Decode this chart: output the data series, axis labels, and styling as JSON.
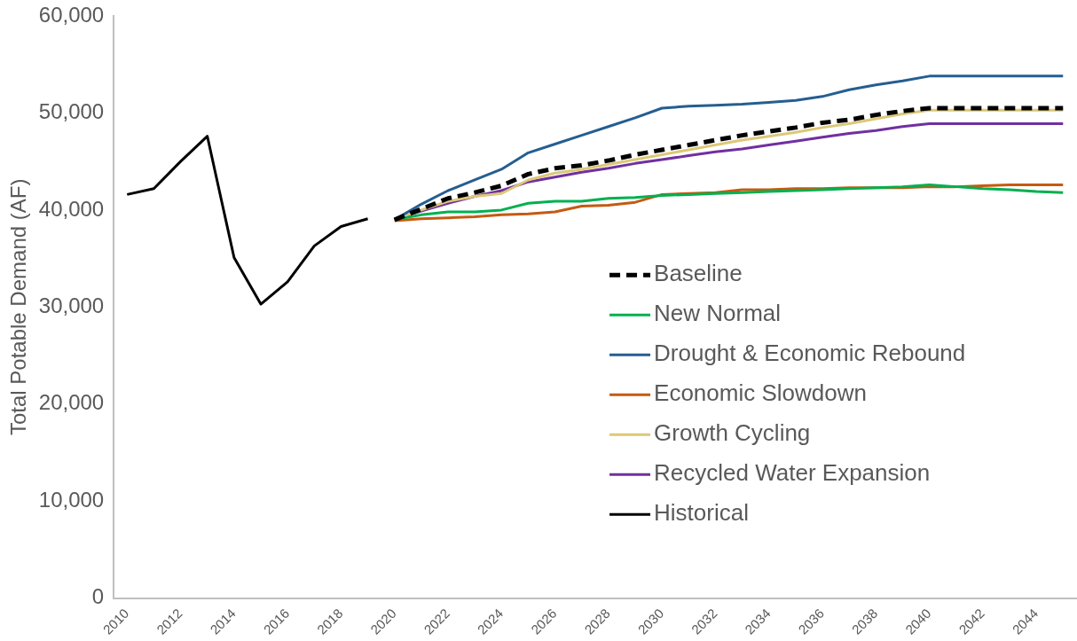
{
  "chart_data": {
    "type": "line",
    "ylabel": "Total Potable Demand (AF)",
    "categories": [
      "2010",
      null,
      "2012",
      null,
      "2014",
      null,
      "2016",
      null,
      "2018",
      null,
      "2020",
      null,
      "2022",
      null,
      "2024",
      null,
      "2026",
      null,
      "2028",
      null,
      "2030",
      null,
      "2032",
      null,
      "2034",
      null,
      "2036",
      null,
      "2038",
      null,
      "2040",
      null,
      "2042",
      null,
      "2044",
      null
    ],
    "ylim": [
      0,
      60000
    ],
    "yticks": [
      {
        "value": 0,
        "label": "0"
      },
      {
        "value": 10000,
        "label": "10,000"
      },
      {
        "value": 20000,
        "label": "20,000"
      },
      {
        "value": 30000,
        "label": "30,000"
      },
      {
        "value": 40000,
        "label": "40,000"
      },
      {
        "value": 50000,
        "label": "50,000"
      },
      {
        "value": 60000,
        "label": "60,000"
      }
    ],
    "legend": "right",
    "marker": "none",
    "series": [
      {
        "name": "Baseline",
        "color": "#000000",
        "line_style": "dashed",
        "values": [
          null,
          null,
          null,
          null,
          null,
          null,
          null,
          null,
          null,
          null,
          39000,
          40100,
          41200,
          41800,
          42500,
          43700,
          44300,
          44600,
          45100,
          45700,
          46200,
          46700,
          47200,
          47700,
          48100,
          48500,
          49000,
          49300,
          49800,
          50200,
          50500,
          50500,
          50500,
          50500,
          50500,
          50500
        ]
      },
      {
        "name": "New Normal",
        "color": "#00b050",
        "values": [
          null,
          null,
          null,
          null,
          null,
          null,
          null,
          null,
          null,
          null,
          39000,
          39500,
          39800,
          39800,
          40000,
          40700,
          40900,
          40900,
          41200,
          41300,
          41500,
          41600,
          41700,
          41800,
          41900,
          42000,
          42100,
          42200,
          42300,
          42400,
          42600,
          42400,
          42200,
          42100,
          41900,
          41800
        ]
      },
      {
        "name": "Drought & Economic Rebound",
        "color": "#255e91",
        "values": [
          null,
          null,
          null,
          null,
          null,
          null,
          null,
          null,
          null,
          null,
          39000,
          40600,
          42000,
          43100,
          44200,
          45900,
          46800,
          47700,
          48600,
          49500,
          50500,
          50700,
          50800,
          50900,
          51100,
          51300,
          51700,
          52400,
          52900,
          53300,
          53800,
          53800,
          53800,
          53800,
          53800,
          53800
        ]
      },
      {
        "name": "Economic Slowdown",
        "color": "#c55a11",
        "values": [
          null,
          null,
          null,
          null,
          null,
          null,
          null,
          null,
          null,
          null,
          38900,
          39100,
          39200,
          39300,
          39500,
          39600,
          39800,
          40400,
          40500,
          40800,
          41600,
          41700,
          41800,
          42100,
          42100,
          42200,
          42200,
          42300,
          42300,
          42300,
          42400,
          42400,
          42500,
          42600,
          42600,
          42600
        ]
      },
      {
        "name": "Growth Cycling",
        "color": "#dcc878",
        "values": [
          null,
          null,
          null,
          null,
          null,
          null,
          null,
          null,
          null,
          null,
          39000,
          40000,
          40900,
          41400,
          41700,
          43100,
          43800,
          44200,
          44700,
          45200,
          45700,
          46200,
          46700,
          47200,
          47600,
          48000,
          48500,
          48900,
          49400,
          49900,
          50300,
          50300,
          50300,
          50300,
          50300,
          50300
        ]
      },
      {
        "name": "Recycled Water Expansion",
        "color": "#7030a0",
        "values": [
          null,
          null,
          null,
          null,
          null,
          null,
          null,
          null,
          null,
          null,
          39000,
          39900,
          40700,
          41400,
          42000,
          42900,
          43400,
          43900,
          44300,
          44800,
          45200,
          45600,
          46000,
          46300,
          46700,
          47100,
          47500,
          47900,
          48200,
          48600,
          48900,
          48900,
          48900,
          48900,
          48900,
          48900
        ]
      },
      {
        "name": "Historical",
        "color": "#000000",
        "values": [
          41600,
          42200,
          45000,
          47600,
          35100,
          30300,
          32600,
          36300,
          38300,
          39100,
          null,
          null,
          null,
          null,
          null,
          null,
          null,
          null,
          null,
          null,
          null,
          null,
          null,
          null,
          null,
          null,
          null,
          null,
          null,
          null,
          null,
          null,
          null,
          null,
          null,
          null
        ]
      }
    ]
  }
}
